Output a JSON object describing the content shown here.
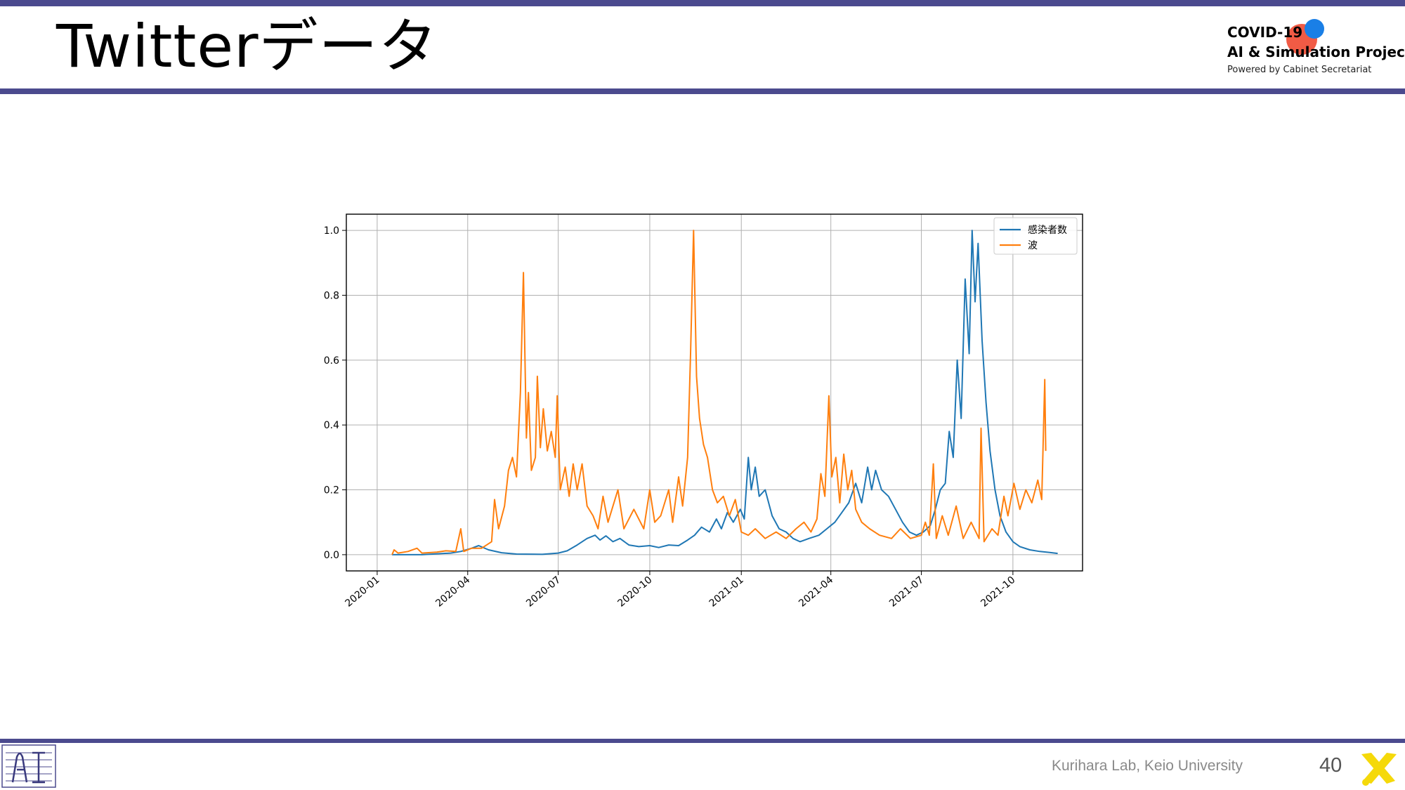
{
  "slide": {
    "title": "Twitterデータ",
    "footer": "Kurihara Lab, Keio University",
    "page_number": "40"
  },
  "logo": {
    "line1": "COVID-19",
    "line2": "AI & Simulation Project",
    "line3": "Powered by Cabinet Secretariat",
    "colors": {
      "red": "#f15b45",
      "blue": "#1a7fe6"
    }
  },
  "colors": {
    "band": "#4b4a8e",
    "series_infections": "#1f77b4",
    "series_wave": "#ff7f0e"
  },
  "chart_data": {
    "type": "line",
    "title": "",
    "xlabel": "",
    "ylabel": "",
    "x_type": "date",
    "xlim": [
      "2019-12-01",
      "2021-12-10"
    ],
    "ylim": [
      -0.05,
      1.05
    ],
    "x_ticks": [
      "2020-01",
      "2020-04",
      "2020-07",
      "2020-10",
      "2021-01",
      "2021-04",
      "2021-07",
      "2021-10"
    ],
    "y_ticks": [
      "0.0",
      "0.2",
      "0.4",
      "0.6",
      "0.8",
      "1.0"
    ],
    "grid": true,
    "legend": "upper right",
    "series": [
      {
        "name": "感染者数",
        "color": "#1f77b4",
        "points": [
          [
            "2020-01-16",
            0.0
          ],
          [
            "2020-02-15",
            0.0
          ],
          [
            "2020-03-15",
            0.005
          ],
          [
            "2020-03-25",
            0.01
          ],
          [
            "2020-04-05",
            0.02
          ],
          [
            "2020-04-12",
            0.028
          ],
          [
            "2020-04-22",
            0.015
          ],
          [
            "2020-05-05",
            0.006
          ],
          [
            "2020-05-20",
            0.002
          ],
          [
            "2020-06-15",
            0.001
          ],
          [
            "2020-07-01",
            0.005
          ],
          [
            "2020-07-10",
            0.012
          ],
          [
            "2020-07-20",
            0.03
          ],
          [
            "2020-07-30",
            0.05
          ],
          [
            "2020-08-07",
            0.06
          ],
          [
            "2020-08-12",
            0.045
          ],
          [
            "2020-08-18",
            0.058
          ],
          [
            "2020-08-25",
            0.04
          ],
          [
            "2020-09-01",
            0.05
          ],
          [
            "2020-09-10",
            0.03
          ],
          [
            "2020-09-20",
            0.025
          ],
          [
            "2020-10-01",
            0.028
          ],
          [
            "2020-10-10",
            0.022
          ],
          [
            "2020-10-20",
            0.03
          ],
          [
            "2020-10-30",
            0.028
          ],
          [
            "2020-11-08",
            0.045
          ],
          [
            "2020-11-15",
            0.06
          ],
          [
            "2020-11-22",
            0.085
          ],
          [
            "2020-11-30",
            0.07
          ],
          [
            "2020-12-07",
            0.11
          ],
          [
            "2020-12-12",
            0.08
          ],
          [
            "2020-12-18",
            0.13
          ],
          [
            "2020-12-24",
            0.1
          ],
          [
            "2020-12-31",
            0.14
          ],
          [
            "2021-01-04",
            0.11
          ],
          [
            "2021-01-08",
            0.3
          ],
          [
            "2021-01-11",
            0.2
          ],
          [
            "2021-01-15",
            0.27
          ],
          [
            "2021-01-19",
            0.18
          ],
          [
            "2021-01-25",
            0.2
          ],
          [
            "2021-02-01",
            0.12
          ],
          [
            "2021-02-08",
            0.08
          ],
          [
            "2021-02-15",
            0.07
          ],
          [
            "2021-02-22",
            0.05
          ],
          [
            "2021-03-01",
            0.04
          ],
          [
            "2021-03-10",
            0.05
          ],
          [
            "2021-03-20",
            0.06
          ],
          [
            "2021-03-28",
            0.08
          ],
          [
            "2021-04-05",
            0.1
          ],
          [
            "2021-04-12",
            0.13
          ],
          [
            "2021-04-19",
            0.16
          ],
          [
            "2021-04-26",
            0.22
          ],
          [
            "2021-05-02",
            0.16
          ],
          [
            "2021-05-08",
            0.27
          ],
          [
            "2021-05-12",
            0.2
          ],
          [
            "2021-05-16",
            0.26
          ],
          [
            "2021-05-22",
            0.2
          ],
          [
            "2021-05-29",
            0.18
          ],
          [
            "2021-06-05",
            0.14
          ],
          [
            "2021-06-12",
            0.1
          ],
          [
            "2021-06-19",
            0.07
          ],
          [
            "2021-06-26",
            0.06
          ],
          [
            "2021-07-03",
            0.07
          ],
          [
            "2021-07-10",
            0.09
          ],
          [
            "2021-07-15",
            0.14
          ],
          [
            "2021-07-20",
            0.2
          ],
          [
            "2021-07-25",
            0.22
          ],
          [
            "2021-07-29",
            0.38
          ],
          [
            "2021-08-02",
            0.3
          ],
          [
            "2021-08-06",
            0.6
          ],
          [
            "2021-08-10",
            0.42
          ],
          [
            "2021-08-14",
            0.85
          ],
          [
            "2021-08-18",
            0.62
          ],
          [
            "2021-08-21",
            1.0
          ],
          [
            "2021-08-24",
            0.78
          ],
          [
            "2021-08-27",
            0.96
          ],
          [
            "2021-08-31",
            0.66
          ],
          [
            "2021-09-04",
            0.47
          ],
          [
            "2021-09-08",
            0.32
          ],
          [
            "2021-09-13",
            0.2
          ],
          [
            "2021-09-18",
            0.12
          ],
          [
            "2021-09-24",
            0.07
          ],
          [
            "2021-10-01",
            0.04
          ],
          [
            "2021-10-08",
            0.025
          ],
          [
            "2021-10-18",
            0.015
          ],
          [
            "2021-10-28",
            0.01
          ],
          [
            "2021-11-07",
            0.007
          ],
          [
            "2021-11-15",
            0.004
          ]
        ]
      },
      {
        "name": "波",
        "color": "#ff7f0e",
        "points": [
          [
            "2020-01-16",
            0.0
          ],
          [
            "2020-01-18",
            0.015
          ],
          [
            "2020-01-22",
            0.005
          ],
          [
            "2020-02-01",
            0.01
          ],
          [
            "2020-02-10",
            0.02
          ],
          [
            "2020-02-15",
            0.005
          ],
          [
            "2020-03-01",
            0.008
          ],
          [
            "2020-03-10",
            0.012
          ],
          [
            "2020-03-20",
            0.01
          ],
          [
            "2020-03-25",
            0.08
          ],
          [
            "2020-03-28",
            0.01
          ],
          [
            "2020-04-05",
            0.02
          ],
          [
            "2020-04-15",
            0.02
          ],
          [
            "2020-04-25",
            0.04
          ],
          [
            "2020-04-28",
            0.17
          ],
          [
            "2020-05-02",
            0.08
          ],
          [
            "2020-05-08",
            0.15
          ],
          [
            "2020-05-12",
            0.26
          ],
          [
            "2020-05-16",
            0.3
          ],
          [
            "2020-05-20",
            0.24
          ],
          [
            "2020-05-24",
            0.5
          ],
          [
            "2020-05-27",
            0.87
          ],
          [
            "2020-05-30",
            0.36
          ],
          [
            "2020-06-01",
            0.5
          ],
          [
            "2020-06-04",
            0.26
          ],
          [
            "2020-06-08",
            0.3
          ],
          [
            "2020-06-10",
            0.55
          ],
          [
            "2020-06-13",
            0.33
          ],
          [
            "2020-06-16",
            0.45
          ],
          [
            "2020-06-20",
            0.32
          ],
          [
            "2020-06-24",
            0.38
          ],
          [
            "2020-06-28",
            0.3
          ],
          [
            "2020-06-30",
            0.49
          ],
          [
            "2020-07-03",
            0.2
          ],
          [
            "2020-07-08",
            0.27
          ],
          [
            "2020-07-12",
            0.18
          ],
          [
            "2020-07-16",
            0.28
          ],
          [
            "2020-07-20",
            0.2
          ],
          [
            "2020-07-25",
            0.28
          ],
          [
            "2020-07-30",
            0.15
          ],
          [
            "2020-08-05",
            0.12
          ],
          [
            "2020-08-10",
            0.08
          ],
          [
            "2020-08-15",
            0.18
          ],
          [
            "2020-08-20",
            0.1
          ],
          [
            "2020-08-30",
            0.2
          ],
          [
            "2020-09-05",
            0.08
          ],
          [
            "2020-09-15",
            0.14
          ],
          [
            "2020-09-25",
            0.08
          ],
          [
            "2020-10-01",
            0.2
          ],
          [
            "2020-10-06",
            0.1
          ],
          [
            "2020-10-12",
            0.12
          ],
          [
            "2020-10-20",
            0.2
          ],
          [
            "2020-10-24",
            0.1
          ],
          [
            "2020-10-30",
            0.24
          ],
          [
            "2020-11-03",
            0.15
          ],
          [
            "2020-11-08",
            0.3
          ],
          [
            "2020-11-11",
            0.62
          ],
          [
            "2020-11-14",
            1.0
          ],
          [
            "2020-11-17",
            0.55
          ],
          [
            "2020-11-20",
            0.42
          ],
          [
            "2020-11-24",
            0.34
          ],
          [
            "2020-11-28",
            0.3
          ],
          [
            "2020-12-03",
            0.2
          ],
          [
            "2020-12-08",
            0.16
          ],
          [
            "2020-12-14",
            0.18
          ],
          [
            "2020-12-20",
            0.12
          ],
          [
            "2020-12-26",
            0.17
          ],
          [
            "2021-01-01",
            0.07
          ],
          [
            "2021-01-08",
            0.06
          ],
          [
            "2021-01-15",
            0.08
          ],
          [
            "2021-01-25",
            0.05
          ],
          [
            "2021-02-05",
            0.07
          ],
          [
            "2021-02-15",
            0.05
          ],
          [
            "2021-02-25",
            0.08
          ],
          [
            "2021-03-05",
            0.1
          ],
          [
            "2021-03-12",
            0.07
          ],
          [
            "2021-03-18",
            0.11
          ],
          [
            "2021-03-22",
            0.25
          ],
          [
            "2021-03-26",
            0.18
          ],
          [
            "2021-03-30",
            0.49
          ],
          [
            "2021-04-02",
            0.24
          ],
          [
            "2021-04-06",
            0.3
          ],
          [
            "2021-04-10",
            0.16
          ],
          [
            "2021-04-14",
            0.31
          ],
          [
            "2021-04-18",
            0.2
          ],
          [
            "2021-04-22",
            0.26
          ],
          [
            "2021-04-26",
            0.14
          ],
          [
            "2021-05-02",
            0.1
          ],
          [
            "2021-05-10",
            0.08
          ],
          [
            "2021-05-20",
            0.06
          ],
          [
            "2021-06-01",
            0.05
          ],
          [
            "2021-06-10",
            0.08
          ],
          [
            "2021-06-20",
            0.05
          ],
          [
            "2021-07-01",
            0.06
          ],
          [
            "2021-07-05",
            0.1
          ],
          [
            "2021-07-09",
            0.06
          ],
          [
            "2021-07-13",
            0.28
          ],
          [
            "2021-07-16",
            0.05
          ],
          [
            "2021-07-22",
            0.12
          ],
          [
            "2021-07-28",
            0.06
          ],
          [
            "2021-08-05",
            0.15
          ],
          [
            "2021-08-12",
            0.05
          ],
          [
            "2021-08-20",
            0.1
          ],
          [
            "2021-08-28",
            0.05
          ],
          [
            "2021-08-30",
            0.39
          ],
          [
            "2021-09-02",
            0.04
          ],
          [
            "2021-09-10",
            0.08
          ],
          [
            "2021-09-16",
            0.06
          ],
          [
            "2021-09-22",
            0.18
          ],
          [
            "2021-09-26",
            0.12
          ],
          [
            "2021-10-02",
            0.22
          ],
          [
            "2021-10-08",
            0.14
          ],
          [
            "2021-10-14",
            0.2
          ],
          [
            "2021-10-20",
            0.16
          ],
          [
            "2021-10-26",
            0.23
          ],
          [
            "2021-10-30",
            0.17
          ],
          [
            "2021-11-02",
            0.54
          ],
          [
            "2021-11-03",
            0.32
          ]
        ]
      }
    ]
  }
}
